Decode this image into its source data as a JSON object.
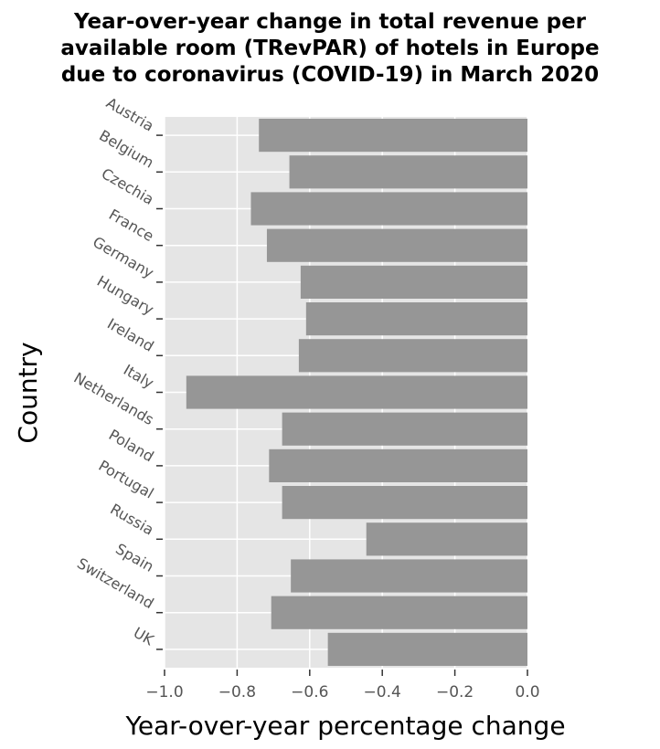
{
  "chart_data": {
    "type": "bar",
    "orientation": "horizontal",
    "title_lines": [
      "Year-over-year change in total revenue per",
      "available room (TRevPAR) of hotels in Europe",
      "due to coronavirus (COVID-19) in March 2020"
    ],
    "xlabel": "Year-over-year percentage change",
    "ylabel": "Country",
    "categories": [
      "Austria",
      "Belgium",
      "Czechia",
      "France",
      "Germany",
      "Hungary",
      "Ireland",
      "Italy",
      "Netherlands",
      "Poland",
      "Portugal",
      "Russia",
      "Spain",
      "Switzerland",
      "UK"
    ],
    "values": [
      -0.74,
      -0.656,
      -0.762,
      -0.718,
      -0.625,
      -0.61,
      -0.63,
      -0.94,
      -0.676,
      -0.712,
      -0.676,
      -0.444,
      -0.652,
      -0.706,
      -0.55
    ],
    "xlim": [
      -1.0,
      0.0
    ],
    "xticks": [
      -1.0,
      -0.8,
      -0.6,
      -0.4,
      -0.2,
      0.0
    ],
    "xtick_labels": [
      "−1.0",
      "−0.8",
      "−0.6",
      "−0.4",
      "−0.2",
      "0.0"
    ],
    "grid": true,
    "colors": {
      "bar": "#969696",
      "panel_background": "#e5e5e5",
      "grid": "#ffffff",
      "tick_label": "#555555"
    }
  }
}
